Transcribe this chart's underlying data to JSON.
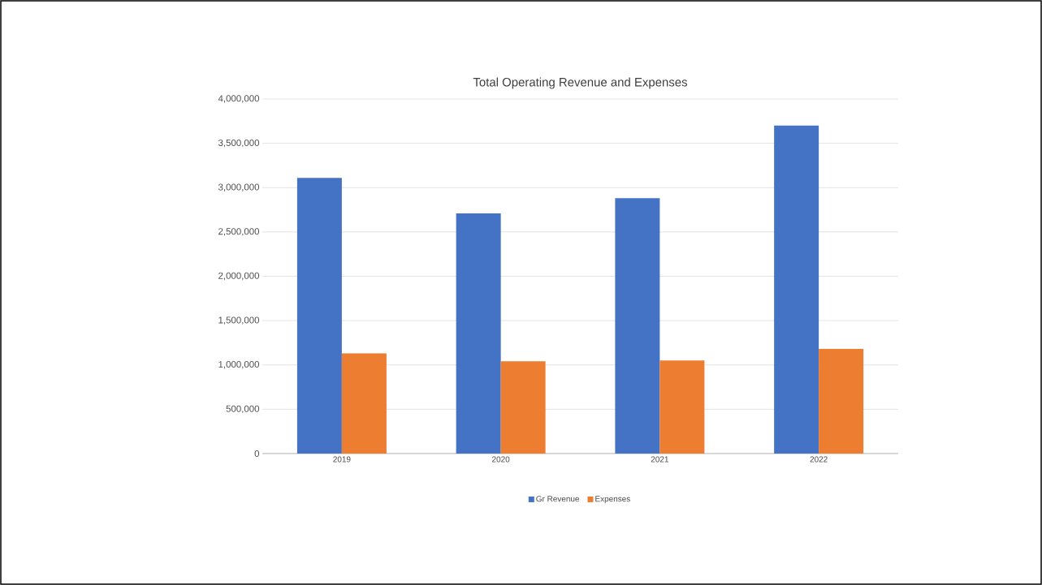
{
  "chart_data": {
    "type": "bar",
    "title": "Total Operating Revenue and Expenses",
    "categories": [
      "2019",
      "2020",
      "2021",
      "2022"
    ],
    "series": [
      {
        "name": "Gr Revenue",
        "color": "#4472c4",
        "values": [
          3110000,
          2710000,
          2880000,
          3700000
        ]
      },
      {
        "name": "Expenses",
        "color": "#ed7d31",
        "values": [
          1130000,
          1040000,
          1050000,
          1180000
        ]
      }
    ],
    "ylim": [
      0,
      4000000
    ],
    "yticks": [
      {
        "value": 0,
        "label": "0"
      },
      {
        "value": 500000,
        "label": "500,000"
      },
      {
        "value": 1000000,
        "label": "1,000,000"
      },
      {
        "value": 1500000,
        "label": "1,500,000"
      },
      {
        "value": 2000000,
        "label": "2,000,000"
      },
      {
        "value": 2500000,
        "label": "2,500,000"
      },
      {
        "value": 3000000,
        "label": "3,000,000"
      },
      {
        "value": 3500000,
        "label": "3,500,000"
      },
      {
        "value": 4000000,
        "label": "4,000,000"
      }
    ],
    "grid": "y",
    "legend": "bottom"
  }
}
